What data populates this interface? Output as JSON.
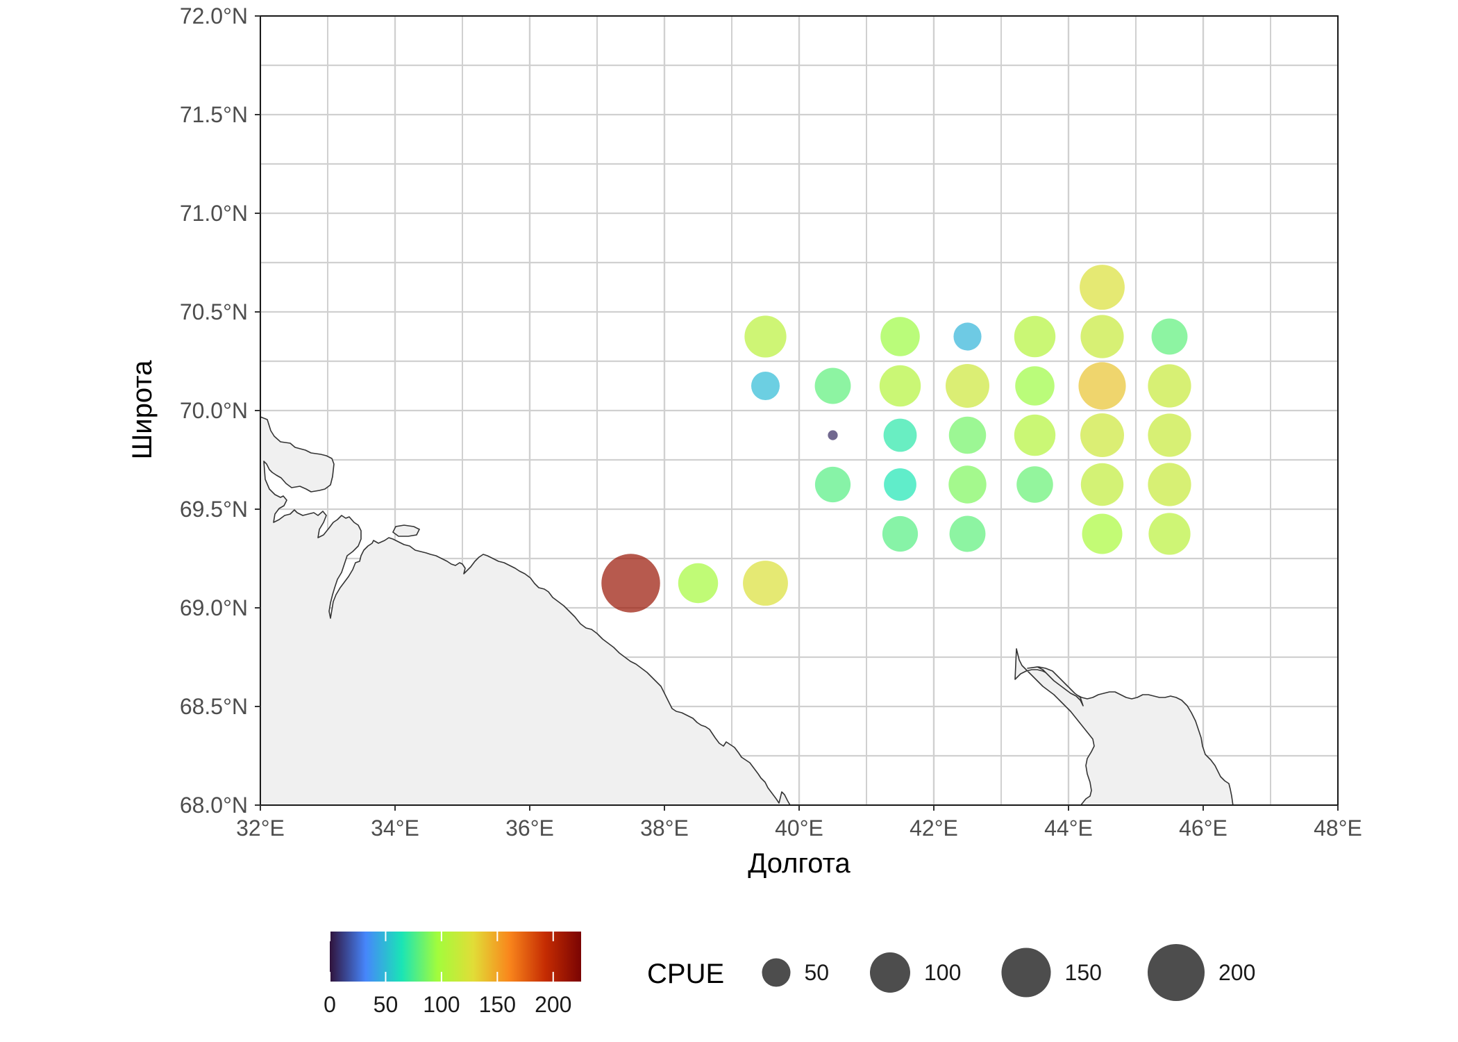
{
  "chart_data": {
    "type": "scatter",
    "subtype": "bubble-map",
    "title": "",
    "xlabel": "Долгота",
    "ylabel": "Широта",
    "xlim": [
      32,
      48
    ],
    "ylim": [
      68,
      72
    ],
    "x_ticks": [
      32,
      34,
      36,
      38,
      40,
      42,
      44,
      46,
      48
    ],
    "x_tick_labels": [
      "32°E",
      "34°E",
      "36°E",
      "38°E",
      "40°E",
      "42°E",
      "44°E",
      "46°E",
      "48°E"
    ],
    "y_ticks": [
      68,
      68.5,
      69,
      69.5,
      70,
      70.5,
      71,
      71.5,
      72
    ],
    "y_tick_labels": [
      "68.0°N",
      "68.5°N",
      "69.0°N",
      "69.5°N",
      "70.0°N",
      "70.5°N",
      "71.0°N",
      "71.5°N",
      "72.0°N"
    ],
    "grid": true,
    "minor_grid": true,
    "land_color": "#f0f0f0",
    "coast_color": "#333333",
    "point_opacity": 0.7,
    "points": [
      {
        "lon": 37.5,
        "lat": 69.125,
        "cpue": 212
      },
      {
        "lon": 38.5,
        "lat": 69.125,
        "cpue": 98
      },
      {
        "lon": 39.5,
        "lat": 69.125,
        "cpue": 125
      },
      {
        "lon": 39.5,
        "lat": 70.375,
        "cpue": 108
      },
      {
        "lon": 39.5,
        "lat": 70.125,
        "cpue": 50
      },
      {
        "lon": 40.5,
        "lat": 70.125,
        "cpue": 80
      },
      {
        "lon": 40.5,
        "lat": 69.875,
        "cpue": 6
      },
      {
        "lon": 40.5,
        "lat": 69.625,
        "cpue": 78
      },
      {
        "lon": 41.5,
        "lat": 70.375,
        "cpue": 95
      },
      {
        "lon": 41.5,
        "lat": 70.125,
        "cpue": 105
      },
      {
        "lon": 41.5,
        "lat": 69.875,
        "cpue": 68
      },
      {
        "lon": 41.5,
        "lat": 69.625,
        "cpue": 65
      },
      {
        "lon": 41.5,
        "lat": 69.375,
        "cpue": 78
      },
      {
        "lon": 42.5,
        "lat": 70.375,
        "cpue": 48
      },
      {
        "lon": 42.5,
        "lat": 70.125,
        "cpue": 118
      },
      {
        "lon": 42.5,
        "lat": 69.875,
        "cpue": 85
      },
      {
        "lon": 42.5,
        "lat": 69.625,
        "cpue": 88
      },
      {
        "lon": 42.5,
        "lat": 69.375,
        "cpue": 80
      },
      {
        "lon": 43.5,
        "lat": 70.375,
        "cpue": 105
      },
      {
        "lon": 43.5,
        "lat": 70.125,
        "cpue": 95
      },
      {
        "lon": 43.5,
        "lat": 69.875,
        "cpue": 105
      },
      {
        "lon": 43.5,
        "lat": 69.625,
        "cpue": 82
      },
      {
        "lon": 44.5,
        "lat": 70.625,
        "cpue": 125
      },
      {
        "lon": 44.5,
        "lat": 70.375,
        "cpue": 115
      },
      {
        "lon": 44.5,
        "lat": 70.125,
        "cpue": 138
      },
      {
        "lon": 44.5,
        "lat": 69.875,
        "cpue": 118
      },
      {
        "lon": 44.5,
        "lat": 69.625,
        "cpue": 112
      },
      {
        "lon": 44.5,
        "lat": 69.375,
        "cpue": 100
      },
      {
        "lon": 45.5,
        "lat": 70.375,
        "cpue": 80
      },
      {
        "lon": 45.5,
        "lat": 70.125,
        "cpue": 115
      },
      {
        "lon": 45.5,
        "lat": 69.875,
        "cpue": 115
      },
      {
        "lon": 45.5,
        "lat": 69.625,
        "cpue": 115
      },
      {
        "lon": 45.5,
        "lat": 69.375,
        "cpue": 108
      }
    ],
    "color_scale": {
      "domain": [
        0,
        225
      ],
      "ticks": [
        0,
        50,
        100,
        150,
        200
      ],
      "tick_labels": [
        "0",
        "50",
        "100",
        "150",
        "200"
      ],
      "stops": [
        "#30123b",
        "#4686fb",
        "#1ae4b6",
        "#a2fc3c",
        "#e1dd37",
        "#f9861c",
        "#c52c02",
        "#7a0403"
      ]
    },
    "size_legend": {
      "title": "CPUE",
      "values": [
        50,
        100,
        150,
        200
      ],
      "labels": [
        "50",
        "100",
        "150",
        "200"
      ],
      "color": "#4d4d4d"
    },
    "legend_position": "bottom"
  }
}
